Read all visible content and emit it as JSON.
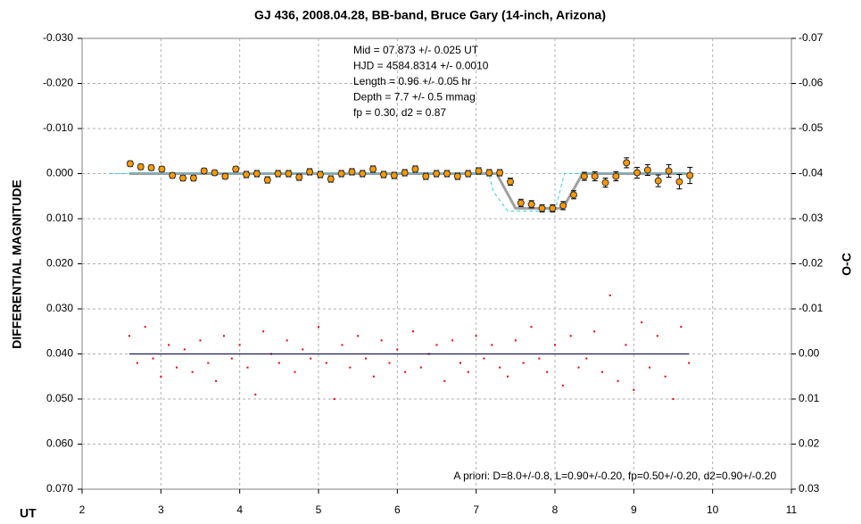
{
  "chart_data": {
    "type": "scatter",
    "title": "GJ 436, 2008.04.28, BB-band, Bruce Gary (14-inch, Arizona)",
    "xlabel": "UT",
    "ylabel": "DIFFERENTIAL MAGNITUDE",
    "y2label": "O-C",
    "annotation_lines": [
      "Mid  = 07.873 +/- 0.025 UT",
      "HJD = 4584.8314 +/- 0.0010",
      "Length = 0.96 +/- 0.05 hr",
      "Depth = 7.7 +/- 0.5 mmag",
      "fp = 0.30, d2 = 0.87"
    ],
    "annotation_bottom": "A priori: D=8.0+/-0.8, L=0.90+/-0.20, fp=0.50+/-0.20, d2=0.90+/-0.20",
    "xlim": [
      2,
      11
    ],
    "xticks": [
      2,
      3,
      4,
      5,
      6,
      7,
      8,
      9,
      10,
      11
    ],
    "ylim": [
      -0.03,
      0.07
    ],
    "y_inverted": true,
    "yticks": [
      {
        "value": -0.03,
        "label": "-0.030"
      },
      {
        "value": -0.02,
        "label": "-0.020"
      },
      {
        "value": -0.01,
        "label": "-0.010"
      },
      {
        "value": 0,
        "label": "0.000"
      },
      {
        "value": 0.01,
        "label": "0.010"
      },
      {
        "value": 0.02,
        "label": "0.020"
      },
      {
        "value": 0.03,
        "label": "0.030"
      },
      {
        "value": 0.04,
        "label": "0.040"
      },
      {
        "value": 0.05,
        "label": "0.050"
      },
      {
        "value": 0.06,
        "label": "0.060"
      },
      {
        "value": 0.07,
        "label": "0.070"
      }
    ],
    "y2lim": [
      -0.07,
      0.03
    ],
    "y2ticks": [
      {
        "value": -0.07,
        "label": "-0.07"
      },
      {
        "value": -0.06,
        "label": "-0.06"
      },
      {
        "value": -0.05,
        "label": "-0.05"
      },
      {
        "value": -0.04,
        "label": "-0.04"
      },
      {
        "value": -0.03,
        "label": "-0.03"
      },
      {
        "value": -0.02,
        "label": "-0.02"
      },
      {
        "value": -0.01,
        "label": "-0.01"
      },
      {
        "value": 0,
        "label": "0.00"
      },
      {
        "value": 0.01,
        "label": "0.01"
      },
      {
        "value": 0.02,
        "label": "0.02"
      },
      {
        "value": 0.03,
        "label": "0.03"
      }
    ],
    "grid": true,
    "series": [
      {
        "style": "model",
        "color": "#a0a0a0",
        "x": [
          2.6,
          7.26,
          7.5,
          8.1,
          8.35,
          9.7
        ],
        "values": [
          0,
          0,
          0.0077,
          0.0077,
          0,
          0
        ]
      },
      {
        "style": "dashed",
        "color": "#33ccee",
        "x": [
          2.35,
          7.16,
          7.22,
          7.4,
          8.0,
          8.12,
          9.7
        ],
        "values": [
          0,
          0,
          0.004,
          0.0083,
          0.0083,
          0,
          0
        ]
      },
      {
        "style": "points",
        "color": "#ff9900",
        "x": [
          2.61,
          2.744,
          2.878,
          3.012,
          3.146,
          3.28,
          3.414,
          3.548,
          3.682,
          3.816,
          3.95,
          4.084,
          4.218,
          4.352,
          4.486,
          4.62,
          4.754,
          4.888,
          5.022,
          5.156,
          5.29,
          5.424,
          5.558,
          5.692,
          5.826,
          5.96,
          6.094,
          6.228,
          6.362,
          6.496,
          6.63,
          6.764,
          6.898,
          7.032,
          7.166,
          7.3,
          7.434,
          7.568,
          7.702,
          7.836,
          7.97,
          8.104,
          8.238,
          8.372,
          8.506,
          8.64,
          8.774,
          8.908,
          9.042,
          9.176,
          9.31,
          9.444,
          9.578,
          9.712
        ],
        "values": [
          -0.0022,
          -0.0015,
          -0.0013,
          -0.001,
          0.0004,
          0.001,
          0.001,
          -0.0006,
          -0.0002,
          0.0006,
          -0.001,
          0.0002,
          0,
          0.0014,
          0,
          0,
          0.0008,
          -0.0004,
          0.0002,
          0.0012,
          0,
          -0.0004,
          0,
          -0.001,
          0.0002,
          0.0004,
          -0.0002,
          -0.001,
          0.0006,
          0,
          0,
          0.0006,
          0,
          -0.0006,
          -0.0002,
          -0.0002,
          0.0018,
          0.0065,
          0.0068,
          0.0077,
          0.0077,
          0.0071,
          0.0047,
          0.0006,
          0.0006,
          0.002,
          0.0006,
          -0.0024,
          -0.0002,
          -0.0008,
          0.0016,
          -0.0006,
          0.0018,
          0.0004
        ],
        "errors": [
          0.0006,
          0.0006,
          0.0006,
          0.0006,
          0.0006,
          0.0006,
          0.0006,
          0.0006,
          0.0006,
          0.0006,
          0.0006,
          0.0007,
          0.0007,
          0.0007,
          0.0007,
          0.0007,
          0.0007,
          0.0007,
          0.0007,
          0.0007,
          0.0007,
          0.0007,
          0.0007,
          0.0007,
          0.0007,
          0.0007,
          0.0007,
          0.0007,
          0.0007,
          0.0007,
          0.0007,
          0.0007,
          0.0007,
          0.0007,
          0.0007,
          0.0007,
          0.0008,
          0.0008,
          0.0008,
          0.0008,
          0.0008,
          0.0009,
          0.0009,
          0.0009,
          0.001,
          0.001,
          0.001,
          0.0011,
          0.0012,
          0.0012,
          0.0013,
          0.0014,
          0.0016,
          0.0018
        ]
      },
      {
        "style": "residuals",
        "axis": "y2",
        "color": "#ee0000",
        "x": [
          2.6,
          2.7,
          2.8,
          2.9,
          3.0,
          3.1,
          3.2,
          3.3,
          3.4,
          3.5,
          3.6,
          3.7,
          3.8,
          3.9,
          4.0,
          4.1,
          4.2,
          4.3,
          4.4,
          4.5,
          4.6,
          4.7,
          4.8,
          4.9,
          5.0,
          5.1,
          5.2,
          5.3,
          5.4,
          5.5,
          5.6,
          5.7,
          5.8,
          5.9,
          6.0,
          6.1,
          6.2,
          6.3,
          6.4,
          6.5,
          6.6,
          6.7,
          6.8,
          6.9,
          7.0,
          7.1,
          7.2,
          7.3,
          7.4,
          7.5,
          7.6,
          7.7,
          7.8,
          7.9,
          8.0,
          8.1,
          8.2,
          8.3,
          8.4,
          8.5,
          8.6,
          8.7,
          8.8,
          8.9,
          9.0,
          9.1,
          9.2,
          9.3,
          9.4,
          9.5,
          9.6,
          9.7
        ],
        "values": [
          -0.004,
          0.002,
          -0.006,
          0.001,
          0.005,
          -0.002,
          0.003,
          -0.001,
          0.004,
          -0.003,
          0.002,
          0.006,
          -0.004,
          0.001,
          -0.002,
          0.003,
          0.009,
          -0.005,
          0,
          0.002,
          -0.003,
          0.004,
          -0.001,
          0.001,
          -0.006,
          0.002,
          0.01,
          -0.002,
          0.003,
          -0.004,
          0.001,
          0.005,
          -0.003,
          0.002,
          -0.001,
          0.004,
          -0.005,
          0.003,
          0,
          -0.002,
          0.006,
          -0.003,
          0.002,
          0.004,
          -0.004,
          0.001,
          -0.002,
          0.003,
          0.005,
          -0.003,
          0.002,
          -0.006,
          0.001,
          0.004,
          -0.002,
          0.007,
          -0.004,
          0.003,
          0.001,
          -0.005,
          0.004,
          -0.013,
          0.006,
          -0.002,
          0.008,
          -0.007,
          0.003,
          -0.004,
          0.005,
          0.01,
          -0.006,
          0.002
        ]
      },
      {
        "style": "baseline",
        "axis": "y2",
        "color": "#000040",
        "x": [
          2.6,
          9.7
        ],
        "values": [
          0,
          0
        ]
      }
    ]
  }
}
